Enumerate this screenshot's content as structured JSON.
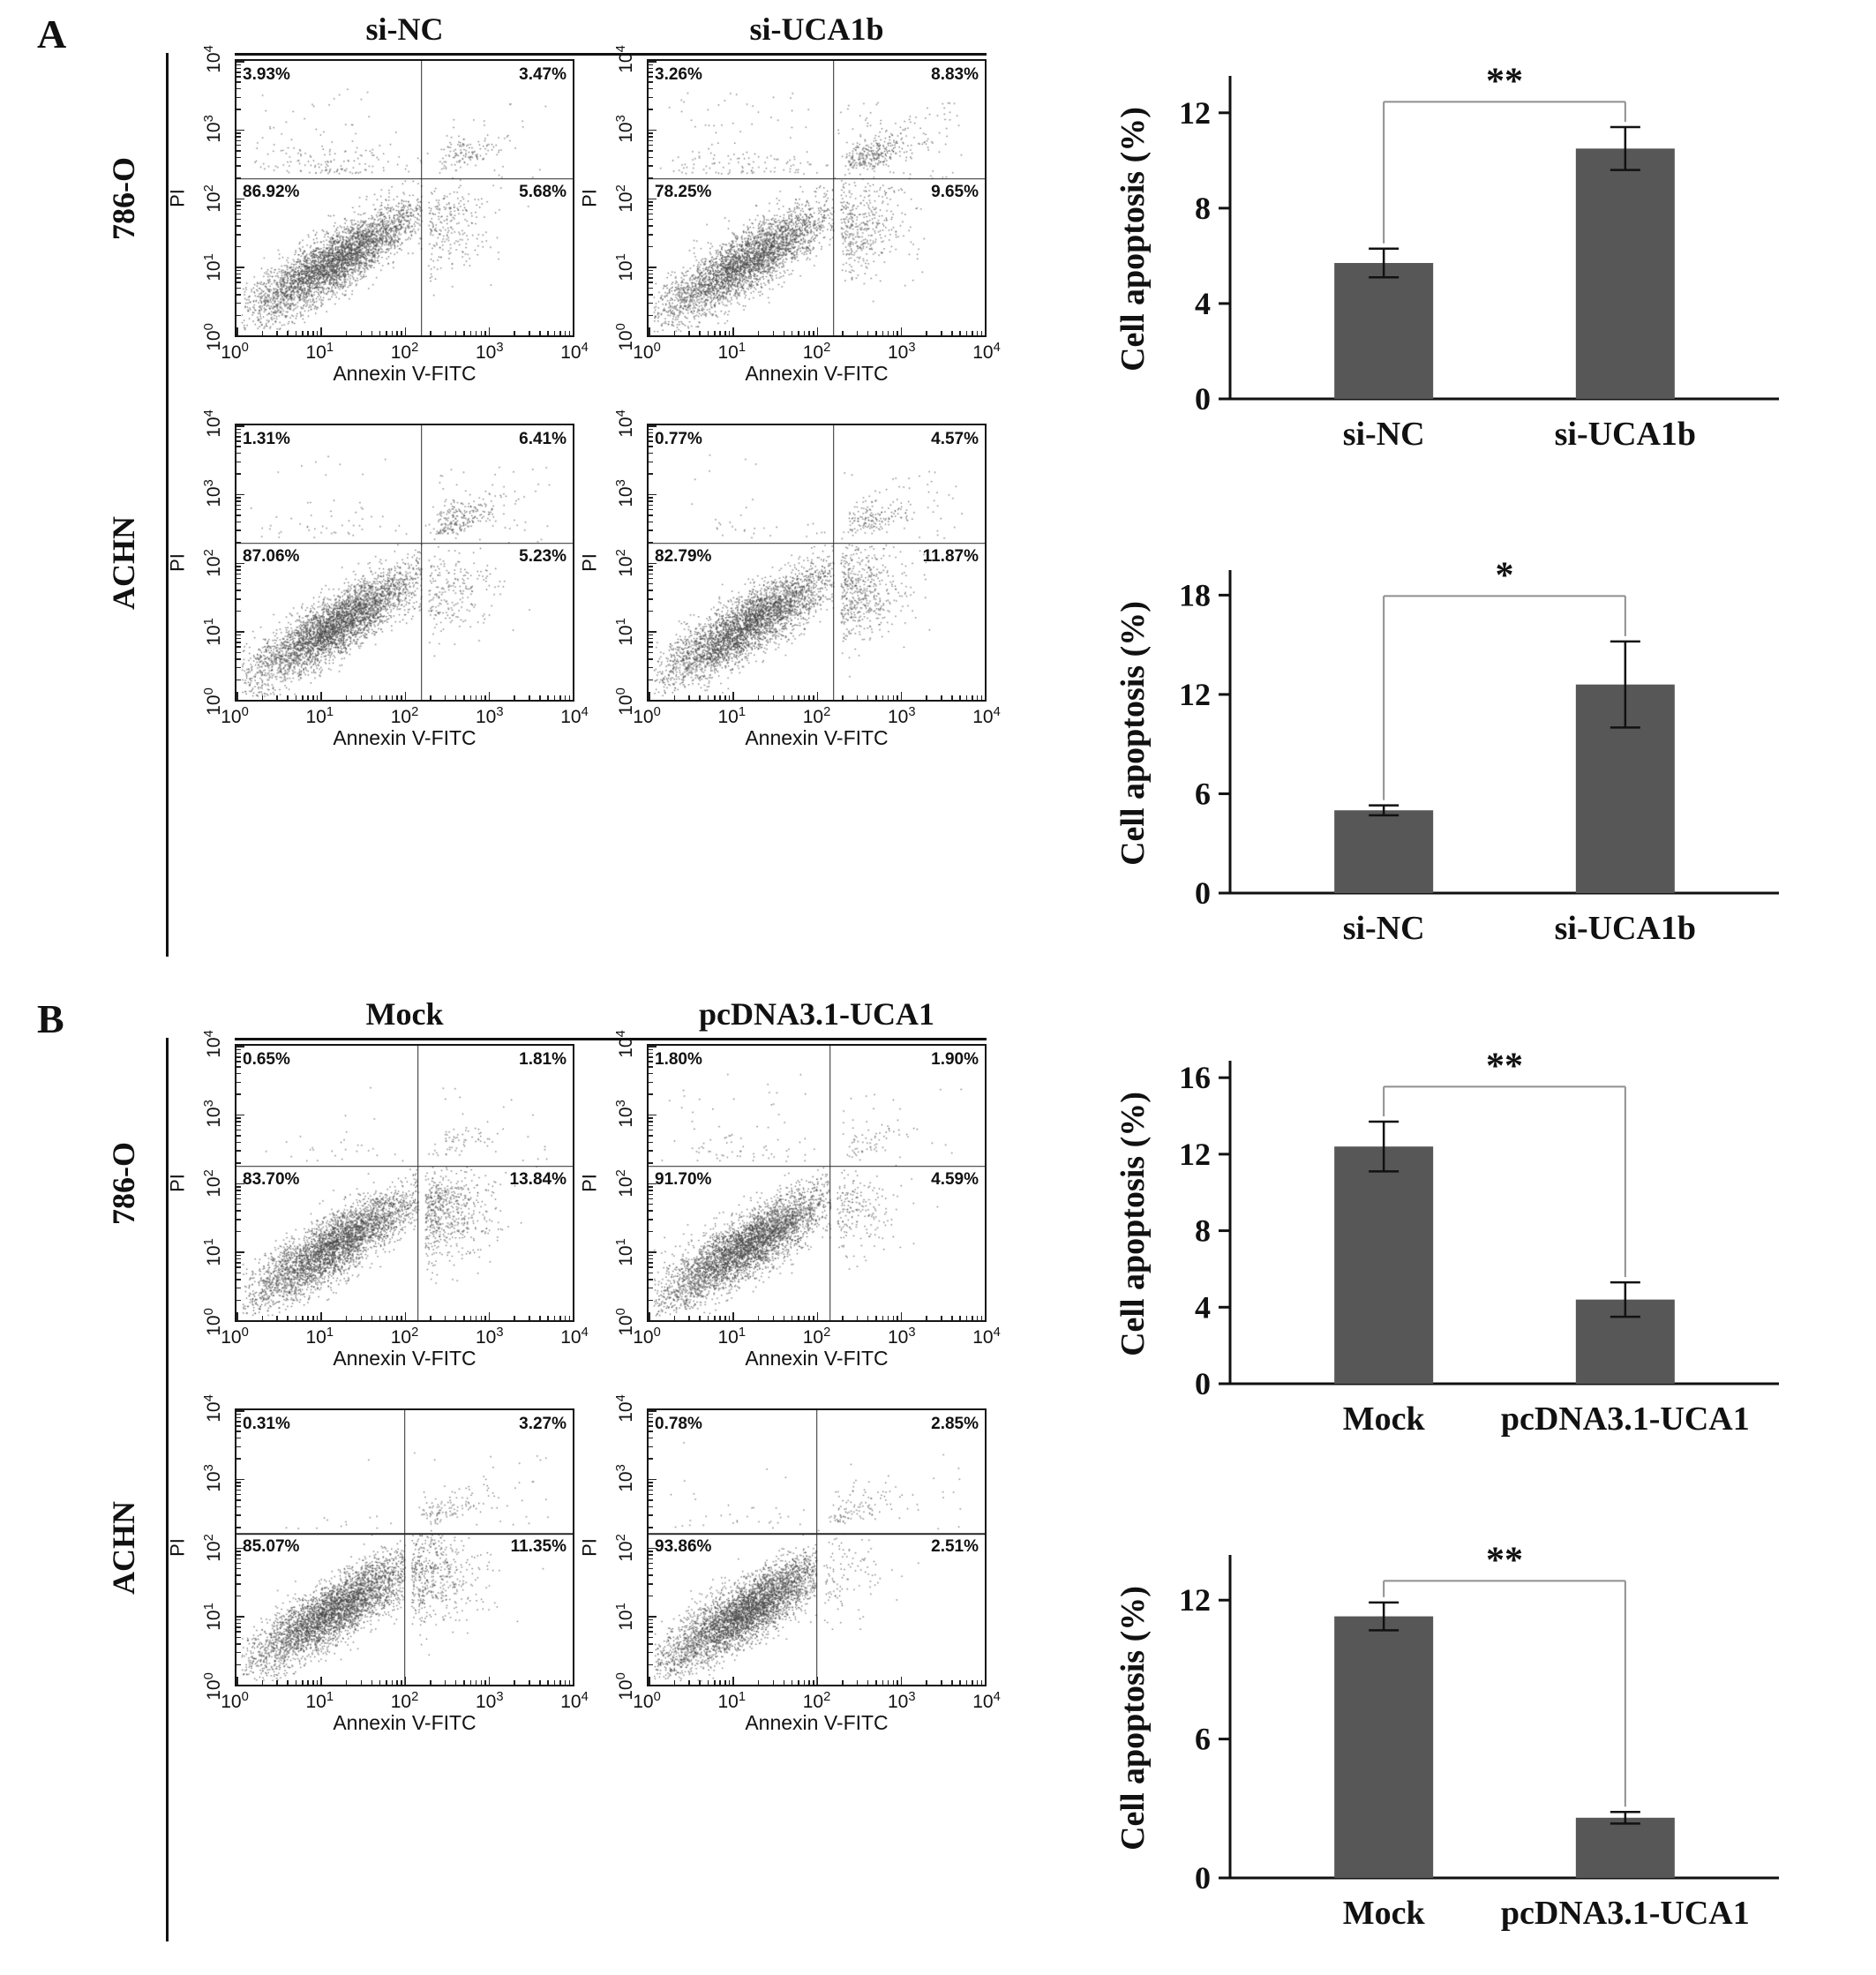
{
  "style": {
    "bar_color": "#575757",
    "dot_color": "#474747",
    "bracket_color": "#8f8f8f"
  },
  "figure": {
    "axis": {
      "x_label": "Annexin V-FITC",
      "y_label": "PI",
      "tick_base": "10",
      "tick_exponents": [
        "0",
        "1",
        "2",
        "3",
        "4"
      ]
    },
    "panels": [
      {
        "label": "A",
        "conditions": [
          "si-NC",
          "si-UCA1b"
        ],
        "cell_lines": [
          "786-O",
          "ACHN"
        ],
        "flow_plots": [
          {
            "cell_line": "786-O",
            "condition": "si-NC",
            "gate_x": 0.55,
            "gate_y": 0.43,
            "quadrants": {
              "upper_left": "3.93%",
              "upper_right": "3.47%",
              "lower_left": "86.92%",
              "lower_right": "5.68%"
            }
          },
          {
            "cell_line": "786-O",
            "condition": "si-UCA1b",
            "gate_x": 0.55,
            "gate_y": 0.43,
            "quadrants": {
              "upper_left": "3.26%",
              "upper_right": "8.83%",
              "lower_left": "78.25%",
              "lower_right": "9.65%"
            }
          },
          {
            "cell_line": "ACHN",
            "condition": "si-NC",
            "gate_x": 0.55,
            "gate_y": 0.43,
            "quadrants": {
              "upper_left": "1.31%",
              "upper_right": "6.41%",
              "lower_left": "87.06%",
              "lower_right": "5.23%"
            }
          },
          {
            "cell_line": "ACHN",
            "condition": "si-UCA1b",
            "gate_x": 0.55,
            "gate_y": 0.43,
            "quadrants": {
              "upper_left": "0.77%",
              "upper_right": "4.57%",
              "lower_left": "82.79%",
              "lower_right": "11.87%"
            }
          }
        ]
      },
      {
        "label": "B",
        "conditions": [
          "Mock",
          "pcDNA3.1-UCA1"
        ],
        "cell_lines": [
          "786-O",
          "ACHN"
        ],
        "flow_plots": [
          {
            "cell_line": "786-O",
            "condition": "Mock",
            "gate_x": 0.54,
            "gate_y": 0.44,
            "quadrants": {
              "upper_left": "0.65%",
              "upper_right": "1.81%",
              "lower_left": "83.70%",
              "lower_right": "13.84%"
            }
          },
          {
            "cell_line": "786-O",
            "condition": "pcDNA3.1-UCA1",
            "gate_x": 0.54,
            "gate_y": 0.44,
            "quadrants": {
              "upper_left": "1.80%",
              "upper_right": "1.90%",
              "lower_left": "91.70%",
              "lower_right": "4.59%"
            }
          },
          {
            "cell_line": "ACHN",
            "condition": "Mock",
            "gate_x": 0.5,
            "gate_y": 0.45,
            "quadrants": {
              "upper_left": "0.31%",
              "upper_right": "3.27%",
              "lower_left": "85.07%",
              "lower_right": "11.35%"
            }
          },
          {
            "cell_line": "ACHN",
            "condition": "pcDNA3.1-UCA1",
            "gate_x": 0.5,
            "gate_y": 0.45,
            "quadrants": {
              "upper_left": "0.78%",
              "upper_right": "2.85%",
              "lower_left": "93.86%",
              "lower_right": "2.51%"
            }
          }
        ]
      }
    ]
  },
  "chart_data": [
    {
      "type": "bar",
      "panel": "A",
      "cell_line": "786-O",
      "categories": [
        "si-NC",
        "si-UCA1b"
      ],
      "values": [
        5.7,
        10.5
      ],
      "errors": [
        0.6,
        0.9
      ],
      "title": "",
      "xlabel": "",
      "ylabel": "Cell apoptosis (%)",
      "yticks": [
        0,
        4,
        8,
        12
      ],
      "ylim": [
        0,
        13.4
      ],
      "significance": "**"
    },
    {
      "type": "bar",
      "panel": "A",
      "cell_line": "ACHN",
      "categories": [
        "si-NC",
        "si-UCA1b"
      ],
      "values": [
        5.0,
        12.6
      ],
      "errors": [
        0.3,
        2.6
      ],
      "title": "",
      "xlabel": "",
      "ylabel": "Cell apoptosis (%)",
      "yticks": [
        0,
        6,
        12,
        18
      ],
      "ylim": [
        0,
        19.3
      ],
      "significance": "*"
    },
    {
      "type": "bar",
      "panel": "B",
      "cell_line": "786-O",
      "categories": [
        "Mock",
        "pcDNA3.1-UCA1"
      ],
      "values": [
        12.4,
        4.4
      ],
      "errors": [
        1.3,
        0.9
      ],
      "title": "",
      "xlabel": "",
      "ylabel": "Cell apoptosis (%)",
      "yticks": [
        0,
        4,
        8,
        12,
        16
      ],
      "ylim": [
        0,
        16.7
      ],
      "significance": "**"
    },
    {
      "type": "bar",
      "panel": "B",
      "cell_line": "ACHN",
      "categories": [
        "Mock",
        "pcDNA3.1-UCA1"
      ],
      "values": [
        11.3,
        2.6
      ],
      "errors": [
        0.6,
        0.25
      ],
      "title": "",
      "xlabel": "",
      "ylabel": "Cell apoptosis (%)",
      "yticks": [
        0,
        6,
        12
      ],
      "ylim": [
        0,
        13.8
      ],
      "significance": "**"
    },
    {
      "type": "scatter",
      "panel": "A",
      "cell_line": "786-O",
      "condition": "si-NC",
      "xlabel": "Annexin V-FITC",
      "ylabel": "PI",
      "axis_range_log10": [
        0,
        4
      ],
      "quadrant_percent": {
        "upper_left": 3.93,
        "upper_right": 3.47,
        "lower_left": 86.92,
        "lower_right": 5.68
      }
    },
    {
      "type": "scatter",
      "panel": "A",
      "cell_line": "786-O",
      "condition": "si-UCA1b",
      "xlabel": "Annexin V-FITC",
      "ylabel": "PI",
      "axis_range_log10": [
        0,
        4
      ],
      "quadrant_percent": {
        "upper_left": 3.26,
        "upper_right": 8.83,
        "lower_left": 78.25,
        "lower_right": 9.65
      }
    },
    {
      "type": "scatter",
      "panel": "A",
      "cell_line": "ACHN",
      "condition": "si-NC",
      "xlabel": "Annexin V-FITC",
      "ylabel": "PI",
      "axis_range_log10": [
        0,
        4
      ],
      "quadrant_percent": {
        "upper_left": 1.31,
        "upper_right": 6.41,
        "lower_left": 87.06,
        "lower_right": 5.23
      }
    },
    {
      "type": "scatter",
      "panel": "A",
      "cell_line": "ACHN",
      "condition": "si-UCA1b",
      "xlabel": "Annexin V-FITC",
      "ylabel": "PI",
      "axis_range_log10": [
        0,
        4
      ],
      "quadrant_percent": {
        "upper_left": 0.77,
        "upper_right": 4.57,
        "lower_left": 82.79,
        "lower_right": 11.87
      }
    },
    {
      "type": "scatter",
      "panel": "B",
      "cell_line": "786-O",
      "condition": "Mock",
      "xlabel": "Annexin V-FITC",
      "ylabel": "PI",
      "axis_range_log10": [
        0,
        4
      ],
      "quadrant_percent": {
        "upper_left": 0.65,
        "upper_right": 1.81,
        "lower_left": 83.7,
        "lower_right": 13.84
      }
    },
    {
      "type": "scatter",
      "panel": "B",
      "cell_line": "786-O",
      "condition": "pcDNA3.1-UCA1",
      "xlabel": "Annexin V-FITC",
      "ylabel": "PI",
      "axis_range_log10": [
        0,
        4
      ],
      "quadrant_percent": {
        "upper_left": 1.8,
        "upper_right": 1.9,
        "lower_left": 91.7,
        "lower_right": 4.59
      }
    },
    {
      "type": "scatter",
      "panel": "B",
      "cell_line": "ACHN",
      "condition": "Mock",
      "xlabel": "Annexin V-FITC",
      "ylabel": "PI",
      "axis_range_log10": [
        0,
        4
      ],
      "quadrant_percent": {
        "upper_left": 0.31,
        "upper_right": 3.27,
        "lower_left": 85.07,
        "lower_right": 11.35
      }
    },
    {
      "type": "scatter",
      "panel": "B",
      "cell_line": "ACHN",
      "condition": "pcDNA3.1-UCA1",
      "xlabel": "Annexin V-FITC",
      "ylabel": "PI",
      "axis_range_log10": [
        0,
        4
      ],
      "quadrant_percent": {
        "upper_left": 0.78,
        "upper_right": 2.85,
        "lower_left": 93.86,
        "lower_right": 2.51
      }
    }
  ]
}
